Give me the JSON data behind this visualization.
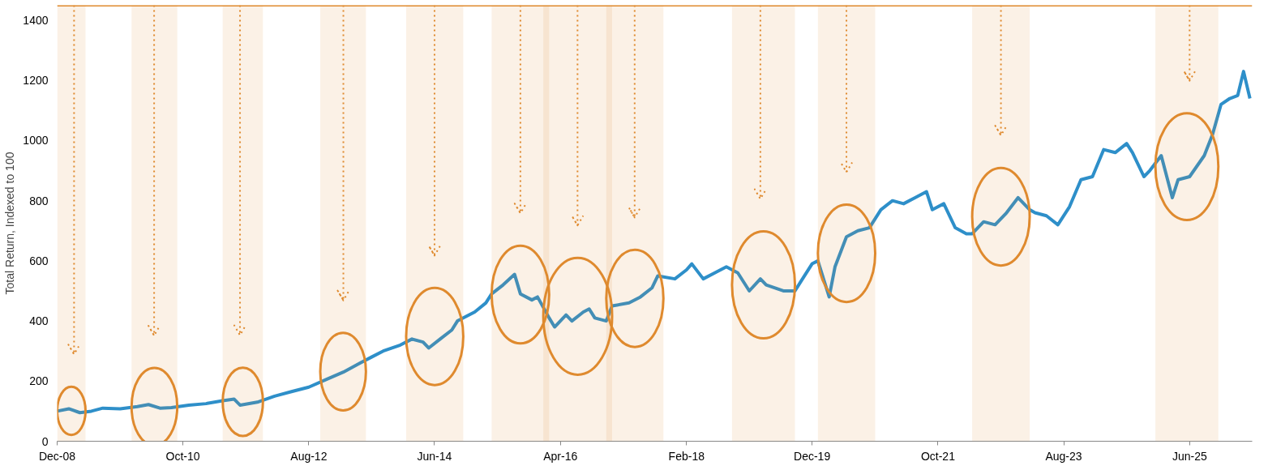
{
  "chart_data": {
    "type": "line",
    "ylabel": "Total Return, Indexed to 100",
    "x": [
      "2008-12",
      "2009-02",
      "2009-04",
      "2009-06",
      "2009-08",
      "2009-11",
      "2010-02",
      "2010-04",
      "2010-06",
      "2010-08",
      "2010-11",
      "2011-02",
      "2011-05",
      "2011-07",
      "2011-08",
      "2011-11",
      "2012-02",
      "2012-05",
      "2012-08",
      "2012-11",
      "2013-02",
      "2013-05",
      "2013-07",
      "2013-09",
      "2013-12",
      "2014-02",
      "2014-04",
      "2014-05",
      "2014-07",
      "2014-09",
      "2014-10",
      "2015-01",
      "2015-03",
      "2015-04",
      "2015-06",
      "2015-08",
      "2015-09",
      "2015-11",
      "2015-12",
      "2016-02",
      "2016-03",
      "2016-05",
      "2016-06",
      "2016-08",
      "2016-09",
      "2016-10",
      "2016-12",
      "2017-01",
      "2017-04",
      "2017-06",
      "2017-08",
      "2017-09",
      "2017-12",
      "2018-02",
      "2018-03",
      "2018-05",
      "2018-07",
      "2018-09",
      "2018-11",
      "2019-01",
      "2019-03",
      "2019-04",
      "2019-07",
      "2019-09",
      "2019-10",
      "2019-12",
      "2020-01",
      "2020-03",
      "2020-04",
      "2020-06",
      "2020-08",
      "2020-10",
      "2020-12",
      "2021-02",
      "2021-04",
      "2021-06",
      "2021-08",
      "2021-09",
      "2021-11",
      "2022-01",
      "2022-03",
      "2022-04",
      "2022-06",
      "2022-08",
      "2022-10",
      "2022-12",
      "2023-02",
      "2023-03",
      "2023-05",
      "2023-07",
      "2023-09",
      "2023-11",
      "2024-01",
      "2024-03",
      "2024-05",
      "2024-07",
      "2024-08",
      "2024-10",
      "2024-11",
      "2025-01",
      "2025-03",
      "2025-04",
      "2025-06",
      "2025-08-18",
      "2025-10-01",
      "2025-11-15",
      "2026-01-01",
      "2026-02-12",
      "2026-03-15",
      "2026-04-18"
    ],
    "series": [
      {
        "color": "#2e8fc9",
        "values": [
          100,
          108,
          95,
          100,
          110,
          108,
          115,
          122,
          110,
          112,
          120,
          125,
          135,
          140,
          120,
          130,
          150,
          165,
          180,
          205,
          230,
          260,
          280,
          300,
          320,
          340,
          330,
          310,
          340,
          370,
          400,
          430,
          460,
          490,
          520,
          555,
          490,
          470,
          480,
          410,
          380,
          420,
          400,
          430,
          440,
          410,
          400,
          450,
          460,
          480,
          510,
          550,
          540,
          570,
          590,
          540,
          560,
          580,
          560,
          500,
          540,
          520,
          500,
          500,
          530,
          590,
          600,
          480,
          580,
          680,
          700,
          710,
          770,
          800,
          790,
          810,
          830,
          770,
          790,
          710,
          690,
          690,
          730,
          720,
          760,
          810,
          770,
          760,
          750,
          720,
          780,
          870,
          880,
          970,
          960,
          990,
          960,
          880,
          900,
          950,
          810,
          870,
          880,
          950,
          1020,
          1120,
          1140,
          1150,
          1230,
          1140
        ]
      }
    ],
    "xlim": [
      "2008-12-01",
      "2026-04-30"
    ],
    "xticks": [
      {
        "value": "2008-12",
        "label": "Dec-08"
      },
      {
        "value": "2010-10",
        "label": "Oct-10"
      },
      {
        "value": "2012-08",
        "label": "Aug-12"
      },
      {
        "value": "2014-06",
        "label": "Jun-14"
      },
      {
        "value": "2016-04",
        "label": "Apr-16"
      },
      {
        "value": "2018-02",
        "label": "Feb-18"
      },
      {
        "value": "2019-12",
        "label": "Dec-19"
      },
      {
        "value": "2021-10",
        "label": "Oct-21"
      },
      {
        "value": "2023-08",
        "label": "Aug-23"
      },
      {
        "value": "2025-06",
        "label": "Jun-25"
      }
    ],
    "ylim": [
      0,
      1450
    ],
    "yticks": [
      0,
      200,
      400,
      600,
      800,
      1000,
      1200,
      1400
    ],
    "grid": false,
    "legend": false,
    "line_style": "solid",
    "marker": "none",
    "ref_lines": [
      {
        "axis": "x",
        "value": "2009-03",
        "color": "#e08a2e",
        "line_style": "dotted"
      },
      {
        "axis": "x",
        "value": "2010-05",
        "color": "#e08a2e",
        "line_style": "dotted"
      },
      {
        "axis": "x",
        "value": "2011-08",
        "color": "#e08a2e",
        "line_style": "dotted"
      },
      {
        "axis": "x",
        "value": "2013-02",
        "color": "#e08a2e",
        "line_style": "dotted"
      },
      {
        "axis": "x",
        "value": "2014-06",
        "color": "#e08a2e",
        "line_style": "dotted"
      },
      {
        "axis": "x",
        "value": "2015-09",
        "color": "#e08a2e",
        "line_style": "dotted"
      },
      {
        "axis": "x",
        "value": "2016-07",
        "color": "#e08a2e",
        "line_style": "dotted"
      },
      {
        "axis": "x",
        "value": "2017-05",
        "color": "#e08a2e",
        "line_style": "dotted"
      },
      {
        "axis": "x",
        "value": "2019-03",
        "color": "#e08a2e",
        "line_style": "dotted"
      },
      {
        "axis": "x",
        "value": "2020-06",
        "color": "#e08a2e",
        "line_style": "dotted"
      },
      {
        "axis": "x",
        "value": "2022-09",
        "color": "#e08a2e",
        "line_style": "dotted"
      },
      {
        "axis": "x",
        "value": "2025-06",
        "color": "#e08a2e",
        "line_style": "dotted"
      }
    ],
    "bands": [
      {
        "axis": "x",
        "from": "2008-12",
        "to": "2009-05",
        "color": "#e08a2e"
      },
      {
        "axis": "x",
        "from": "2010-01",
        "to": "2010-09",
        "color": "#e08a2e"
      },
      {
        "axis": "x",
        "from": "2011-05",
        "to": "2011-12",
        "color": "#e08a2e"
      },
      {
        "axis": "x",
        "from": "2012-10",
        "to": "2013-06",
        "color": "#e08a2e"
      },
      {
        "axis": "x",
        "from": "2014-01",
        "to": "2014-11",
        "color": "#e08a2e"
      },
      {
        "axis": "x",
        "from": "2015-04",
        "to": "2016-02",
        "color": "#e08a2e"
      },
      {
        "axis": "x",
        "from": "2016-01",
        "to": "2017-01",
        "color": "#e08a2e"
      },
      {
        "axis": "x",
        "from": "2016-12",
        "to": "2017-10",
        "color": "#e08a2e"
      },
      {
        "axis": "x",
        "from": "2018-10",
        "to": "2019-09",
        "color": "#e08a2e"
      },
      {
        "axis": "x",
        "from": "2020-01",
        "to": "2020-11",
        "color": "#e08a2e"
      },
      {
        "axis": "x",
        "from": "2022-04",
        "to": "2023-02",
        "color": "#e08a2e"
      },
      {
        "axis": "x",
        "from": "2024-12",
        "to": "2025-11",
        "color": "#e08a2e"
      }
    ]
  }
}
